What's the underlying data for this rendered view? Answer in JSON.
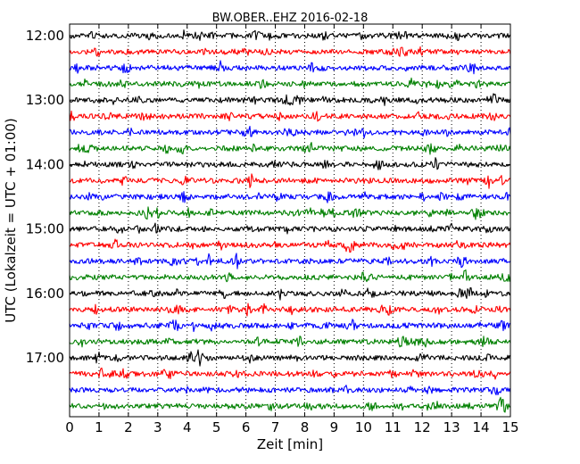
{
  "chart_data": {
    "type": "line",
    "title": "BW.OBER..EHZ 2016-02-18",
    "xlabel": "Zeit  [min]",
    "ylabel": "UTC (Lokalzeit = UTC + 01:00)",
    "xlim": [
      0,
      15
    ],
    "x_ticks": [
      "0",
      "1",
      "2",
      "3",
      "4",
      "5",
      "6",
      "7",
      "8",
      "9",
      "10",
      "11",
      "12",
      "13",
      "14",
      "15"
    ],
    "y_ticks": [
      "12:00",
      "13:00",
      "14:00",
      "15:00",
      "16:00",
      "17:00"
    ],
    "grid": "vertical dotted",
    "colors": [
      "#000000",
      "#ff0000",
      "#0000ff",
      "#008000"
    ],
    "series": [
      {
        "start_utc": "12:00",
        "color": "#000000"
      },
      {
        "start_utc": "12:15",
        "color": "#ff0000"
      },
      {
        "start_utc": "12:30",
        "color": "#0000ff"
      },
      {
        "start_utc": "12:45",
        "color": "#008000"
      },
      {
        "start_utc": "13:00",
        "color": "#000000"
      },
      {
        "start_utc": "13:15",
        "color": "#ff0000"
      },
      {
        "start_utc": "13:30",
        "color": "#0000ff"
      },
      {
        "start_utc": "13:45",
        "color": "#008000"
      },
      {
        "start_utc": "14:00",
        "color": "#000000"
      },
      {
        "start_utc": "14:15",
        "color": "#ff0000"
      },
      {
        "start_utc": "14:30",
        "color": "#0000ff"
      },
      {
        "start_utc": "14:45",
        "color": "#008000"
      },
      {
        "start_utc": "15:00",
        "color": "#000000"
      },
      {
        "start_utc": "15:15",
        "color": "#ff0000"
      },
      {
        "start_utc": "15:30",
        "color": "#0000ff"
      },
      {
        "start_utc": "15:45",
        "color": "#008000"
      },
      {
        "start_utc": "16:00",
        "color": "#000000"
      },
      {
        "start_utc": "16:15",
        "color": "#ff0000"
      },
      {
        "start_utc": "16:30",
        "color": "#0000ff"
      },
      {
        "start_utc": "16:45",
        "color": "#008000"
      },
      {
        "start_utc": "17:00",
        "color": "#000000"
      },
      {
        "start_utc": "17:15",
        "color": "#ff0000"
      },
      {
        "start_utc": "17:30",
        "color": "#0000ff"
      },
      {
        "start_utc": "17:45",
        "color": "#008000"
      }
    ]
  }
}
